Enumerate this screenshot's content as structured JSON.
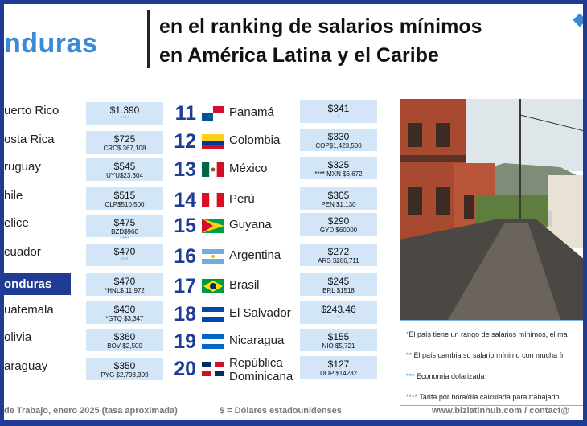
{
  "header": {
    "left_fragment": "nduras",
    "title_line1": "en el ranking de salarios mínimos",
    "title_line2": "en América Latina y el Caribe"
  },
  "left_countries": [
    "uerto Rico",
    "osta Rica",
    "ruguay",
    "hile",
    "elice",
    "cuador",
    "onduras",
    "uatemala",
    "olivia",
    "araguay"
  ],
  "left_salaries": [
    {
      "value": "$1.390",
      "sub": "",
      "stars": "****"
    },
    {
      "value": "$725",
      "sub": "CRC$ 367,108",
      "stars": ""
    },
    {
      "value": "$545",
      "sub": "UYU$23,604",
      "stars": ""
    },
    {
      "value": "$515",
      "sub": "CLP$510,500",
      "stars": ""
    },
    {
      "value": "$475",
      "sub": "BZD$960",
      "stars": "****"
    },
    {
      "value": "$470",
      "sub": "",
      "stars": "***"
    },
    {
      "value": "$470",
      "sub": "*HNL$ 11,972",
      "stars": ""
    },
    {
      "value": "$430",
      "sub": "*GTQ $3,347",
      "stars": ""
    },
    {
      "value": "$360",
      "sub": "BOV $2,500",
      "stars": ""
    },
    {
      "value": "$350",
      "sub": "PYG $2,798,309",
      "stars": ""
    }
  ],
  "ranking": [
    {
      "rank": "11",
      "country": "Panamá",
      "value": "$341",
      "sub": "",
      "stars": "*"
    },
    {
      "rank": "12",
      "country": "Colombia",
      "value": "$330",
      "sub": "COP$1,423,500",
      "stars": ""
    },
    {
      "rank": "13",
      "country": "México",
      "value": "$325",
      "sub": "**** MXN $6,672",
      "stars": ""
    },
    {
      "rank": "14",
      "country": "Perú",
      "value": "$305",
      "sub": "PEN $1,130",
      "stars": ""
    },
    {
      "rank": "15",
      "country": "Guyana",
      "value": "$290",
      "sub": "GYD $60000",
      "stars": ""
    },
    {
      "rank": "16",
      "country": "Argentina",
      "value": "$272",
      "sub": "ARS $286,711",
      "stars": ""
    },
    {
      "rank": "17",
      "country": "Brasil",
      "value": "$245",
      "sub": "BRL $1518",
      "stars": ""
    },
    {
      "rank": "18",
      "country": "El Salvador",
      "value": "$243.46",
      "sub": "",
      "stars": "*"
    },
    {
      "rank": "19",
      "country": "Nicaragua",
      "value": "$155",
      "sub": "NIO $5,721",
      "stars": ""
    },
    {
      "rank": "20",
      "country": "República",
      "country2": "Dominicana",
      "value": "$127",
      "sub": "DOP $14232",
      "stars": ""
    }
  ],
  "notes": [
    {
      "stars": "*",
      "text": "El país tiene un rango de salarios mínimos, el ma"
    },
    {
      "stars": "**",
      "text": " El país cambia su salario mínimo con mucha fr"
    },
    {
      "stars": "***",
      "text": " Economía dolarizada"
    },
    {
      "stars": "****",
      "text": " Tarifa por hora/día calculada para trabajado"
    }
  ],
  "footer": {
    "source": "de Trabajo, enero 2025 (tasa aproximada)",
    "legend": "$ = Dólares estadounidenses",
    "contact": "www.bizlatinhub.com / contact@"
  },
  "colors": {
    "brand_blue": "#1f3b93",
    "accent_blue": "#3a8ad6",
    "box_bg": "#d3e6f7"
  }
}
